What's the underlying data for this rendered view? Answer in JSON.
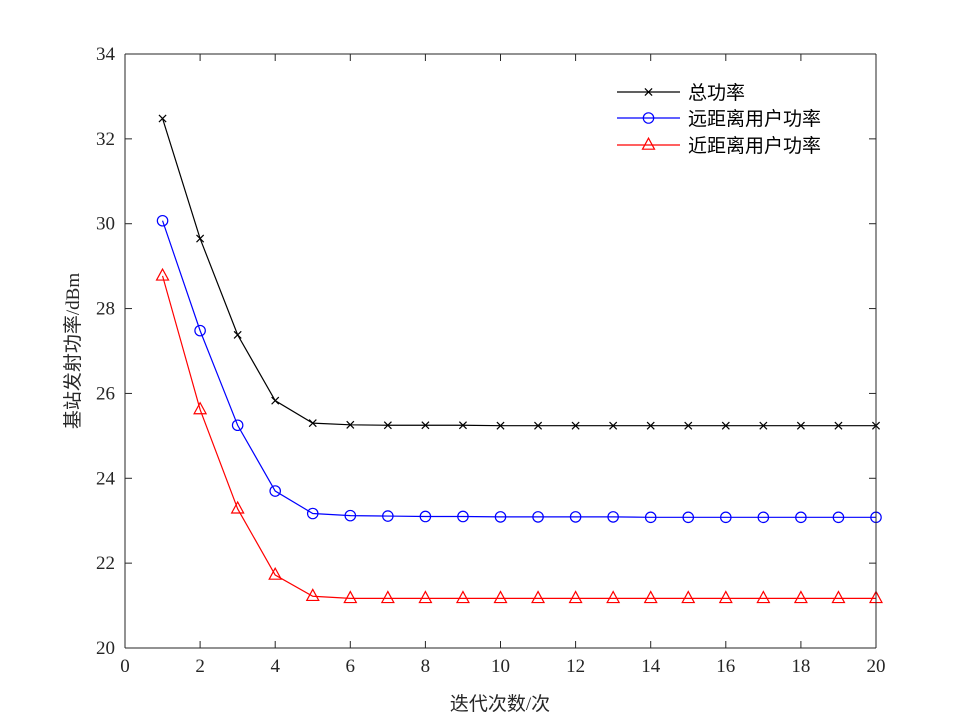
{
  "chart_data": {
    "type": "line",
    "xlabel": "迭代次数/次",
    "ylabel": "基站发射功率/dBm",
    "xlim": [
      0,
      20
    ],
    "ylim": [
      20,
      34
    ],
    "xticks": [
      0,
      2,
      4,
      6,
      8,
      10,
      12,
      14,
      16,
      18,
      20
    ],
    "yticks": [
      20,
      22,
      24,
      26,
      28,
      30,
      32,
      34
    ],
    "grid": false,
    "legend_position": "top-right",
    "x": [
      1,
      2,
      3,
      4,
      5,
      6,
      7,
      8,
      9,
      10,
      11,
      12,
      13,
      14,
      15,
      16,
      17,
      18,
      19,
      20
    ],
    "series": [
      {
        "name": "总功率",
        "color": "#000000",
        "marker": "x",
        "values": [
          32.48,
          29.65,
          27.38,
          25.83,
          25.3,
          25.26,
          25.25,
          25.25,
          25.25,
          25.24,
          25.24,
          25.24,
          25.24,
          25.24,
          25.24,
          25.24,
          25.24,
          25.24,
          25.24,
          25.24
        ]
      },
      {
        "name": "远距离用户功率",
        "color": "#0000ff",
        "marker": "circle",
        "values": [
          30.07,
          27.48,
          25.25,
          23.7,
          23.17,
          23.12,
          23.11,
          23.1,
          23.1,
          23.09,
          23.09,
          23.09,
          23.09,
          23.08,
          23.08,
          23.08,
          23.08,
          23.08,
          23.08,
          23.08
        ]
      },
      {
        "name": "近距离用户功率",
        "color": "#ff0000",
        "marker": "triangle",
        "values": [
          28.77,
          25.62,
          23.28,
          21.72,
          21.22,
          21.17,
          21.17,
          21.17,
          21.17,
          21.17,
          21.17,
          21.17,
          21.17,
          21.17,
          21.17,
          21.17,
          21.17,
          21.17,
          21.17,
          21.17
        ]
      }
    ]
  }
}
